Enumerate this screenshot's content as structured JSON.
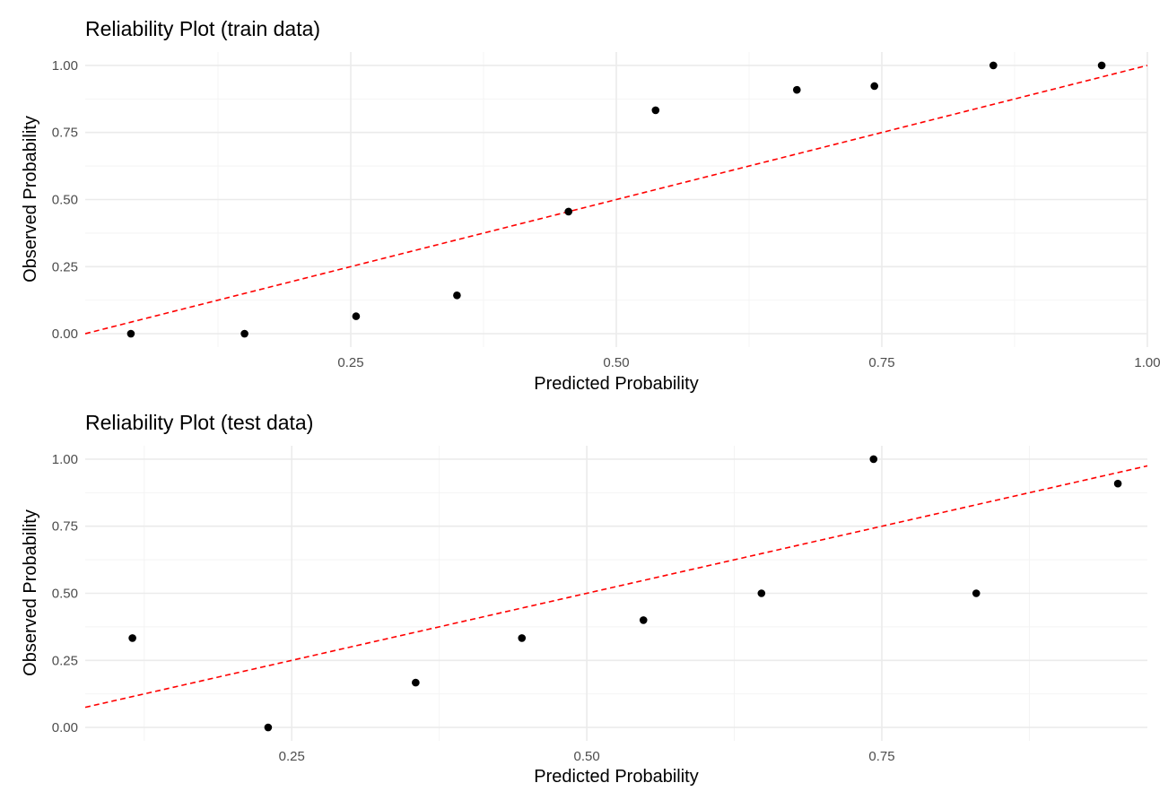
{
  "colors": {
    "background": "#ffffff",
    "grid_major": "#ebebeb",
    "grid_minor": "#f3f3f3",
    "points": "#000000",
    "reference_line": "#ff0000",
    "tick_text": "#4d4d4d"
  },
  "chart_data": [
    {
      "type": "scatter",
      "title": "Reliability Plot (train data)",
      "xlabel": "Predicted Probability",
      "ylabel": "Observed Probability",
      "xlim": [
        0.0,
        1.0
      ],
      "ylim": [
        -0.05,
        1.05
      ],
      "x_ticks": [
        0.25,
        0.5,
        0.75,
        1.0
      ],
      "x_tick_labels": [
        "0.25",
        "0.50",
        "0.75",
        "1.00"
      ],
      "x_minor_ticks": [
        0.125,
        0.375,
        0.625,
        0.875
      ],
      "y_ticks": [
        0.0,
        0.25,
        0.5,
        0.75,
        1.0
      ],
      "y_tick_labels": [
        "0.00",
        "0.25",
        "0.50",
        "0.75",
        "1.00"
      ],
      "y_minor_ticks": [
        0.125,
        0.375,
        0.625,
        0.875
      ],
      "grid": true,
      "points": [
        {
          "x": 0.043,
          "y": 0.0
        },
        {
          "x": 0.15,
          "y": 0.0
        },
        {
          "x": 0.255,
          "y": 0.065
        },
        {
          "x": 0.35,
          "y": 0.143
        },
        {
          "x": 0.455,
          "y": 0.455
        },
        {
          "x": 0.537,
          "y": 0.833
        },
        {
          "x": 0.67,
          "y": 0.909
        },
        {
          "x": 0.743,
          "y": 0.923
        },
        {
          "x": 0.855,
          "y": 1.0
        },
        {
          "x": 0.957,
          "y": 1.0
        }
      ],
      "reference_line": {
        "style": "dashed",
        "from": [
          0.0,
          0.0
        ],
        "to": [
          1.0,
          1.0
        ]
      }
    },
    {
      "type": "scatter",
      "title": "Reliability Plot (test data)",
      "xlabel": "Predicted Probability",
      "ylabel": "Observed Probability",
      "xlim": [
        0.075,
        0.975
      ],
      "ylim": [
        -0.05,
        1.05
      ],
      "x_ticks": [
        0.25,
        0.5,
        0.75
      ],
      "x_tick_labels": [
        "0.25",
        "0.50",
        "0.75"
      ],
      "x_minor_ticks": [
        0.125,
        0.375,
        0.625,
        0.875
      ],
      "y_ticks": [
        0.0,
        0.25,
        0.5,
        0.75,
        1.0
      ],
      "y_tick_labels": [
        "0.00",
        "0.25",
        "0.50",
        "0.75",
        "1.00"
      ],
      "y_minor_ticks": [
        0.125,
        0.375,
        0.625,
        0.875
      ],
      "grid": true,
      "points": [
        {
          "x": 0.115,
          "y": 0.333
        },
        {
          "x": 0.23,
          "y": 0.0
        },
        {
          "x": 0.355,
          "y": 0.167
        },
        {
          "x": 0.445,
          "y": 0.333
        },
        {
          "x": 0.548,
          "y": 0.4
        },
        {
          "x": 0.648,
          "y": 0.5
        },
        {
          "x": 0.743,
          "y": 1.0
        },
        {
          "x": 0.83,
          "y": 0.5
        },
        {
          "x": 0.95,
          "y": 0.909
        }
      ],
      "reference_line": {
        "style": "dashed",
        "from": [
          0.075,
          0.075
        ],
        "to": [
          0.975,
          0.975
        ]
      }
    }
  ]
}
